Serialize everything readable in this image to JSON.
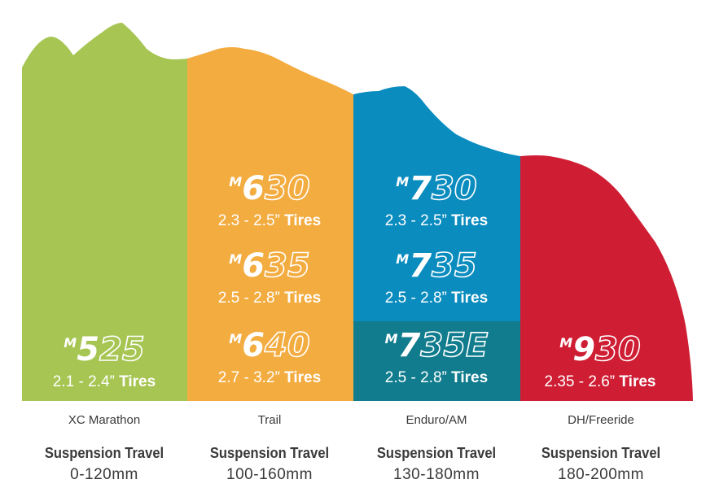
{
  "colors": {
    "green": "#a6c552",
    "orange": "#f3ac40",
    "blue": "#0a8cbf",
    "teal": "#107c8d",
    "red": "#cf1e34",
    "text": "#3a3a3a"
  },
  "columns": [
    {
      "category": "XC Marathon",
      "suspension_title": "Suspension Travel",
      "suspension_value": "0-120mm",
      "models": [
        {
          "model": "M525",
          "tires": "2.1 - 2.4”",
          "unit": "Tires"
        }
      ]
    },
    {
      "category": "Trail",
      "suspension_title": "Suspension Travel",
      "suspension_value": "100-160mm",
      "models": [
        {
          "model": "M630",
          "tires": "2.3 - 2.5”",
          "unit": "Tires"
        },
        {
          "model": "M635",
          "tires": "2.5 - 2.8”",
          "unit": "Tires"
        },
        {
          "model": "M640",
          "tires": "2.7 - 3.2”",
          "unit": "Tires"
        }
      ]
    },
    {
      "category": "Enduro/AM",
      "suspension_title": "Suspension Travel",
      "suspension_value": "130-180mm",
      "models": [
        {
          "model": "M730",
          "tires": "2.3 - 2.5”",
          "unit": "Tires"
        },
        {
          "model": "M735",
          "tires": "2.5 - 2.8”",
          "unit": "Tires"
        },
        {
          "model": "M735E",
          "tires": "2.5 - 2.8”",
          "unit": "Tires"
        }
      ]
    },
    {
      "category": "DH/Freeride",
      "suspension_title": "Suspension Travel",
      "suspension_value": "180-200mm",
      "models": [
        {
          "model": "M930",
          "tires": "2.35 - 2.6”",
          "unit": "Tires"
        }
      ]
    }
  ]
}
